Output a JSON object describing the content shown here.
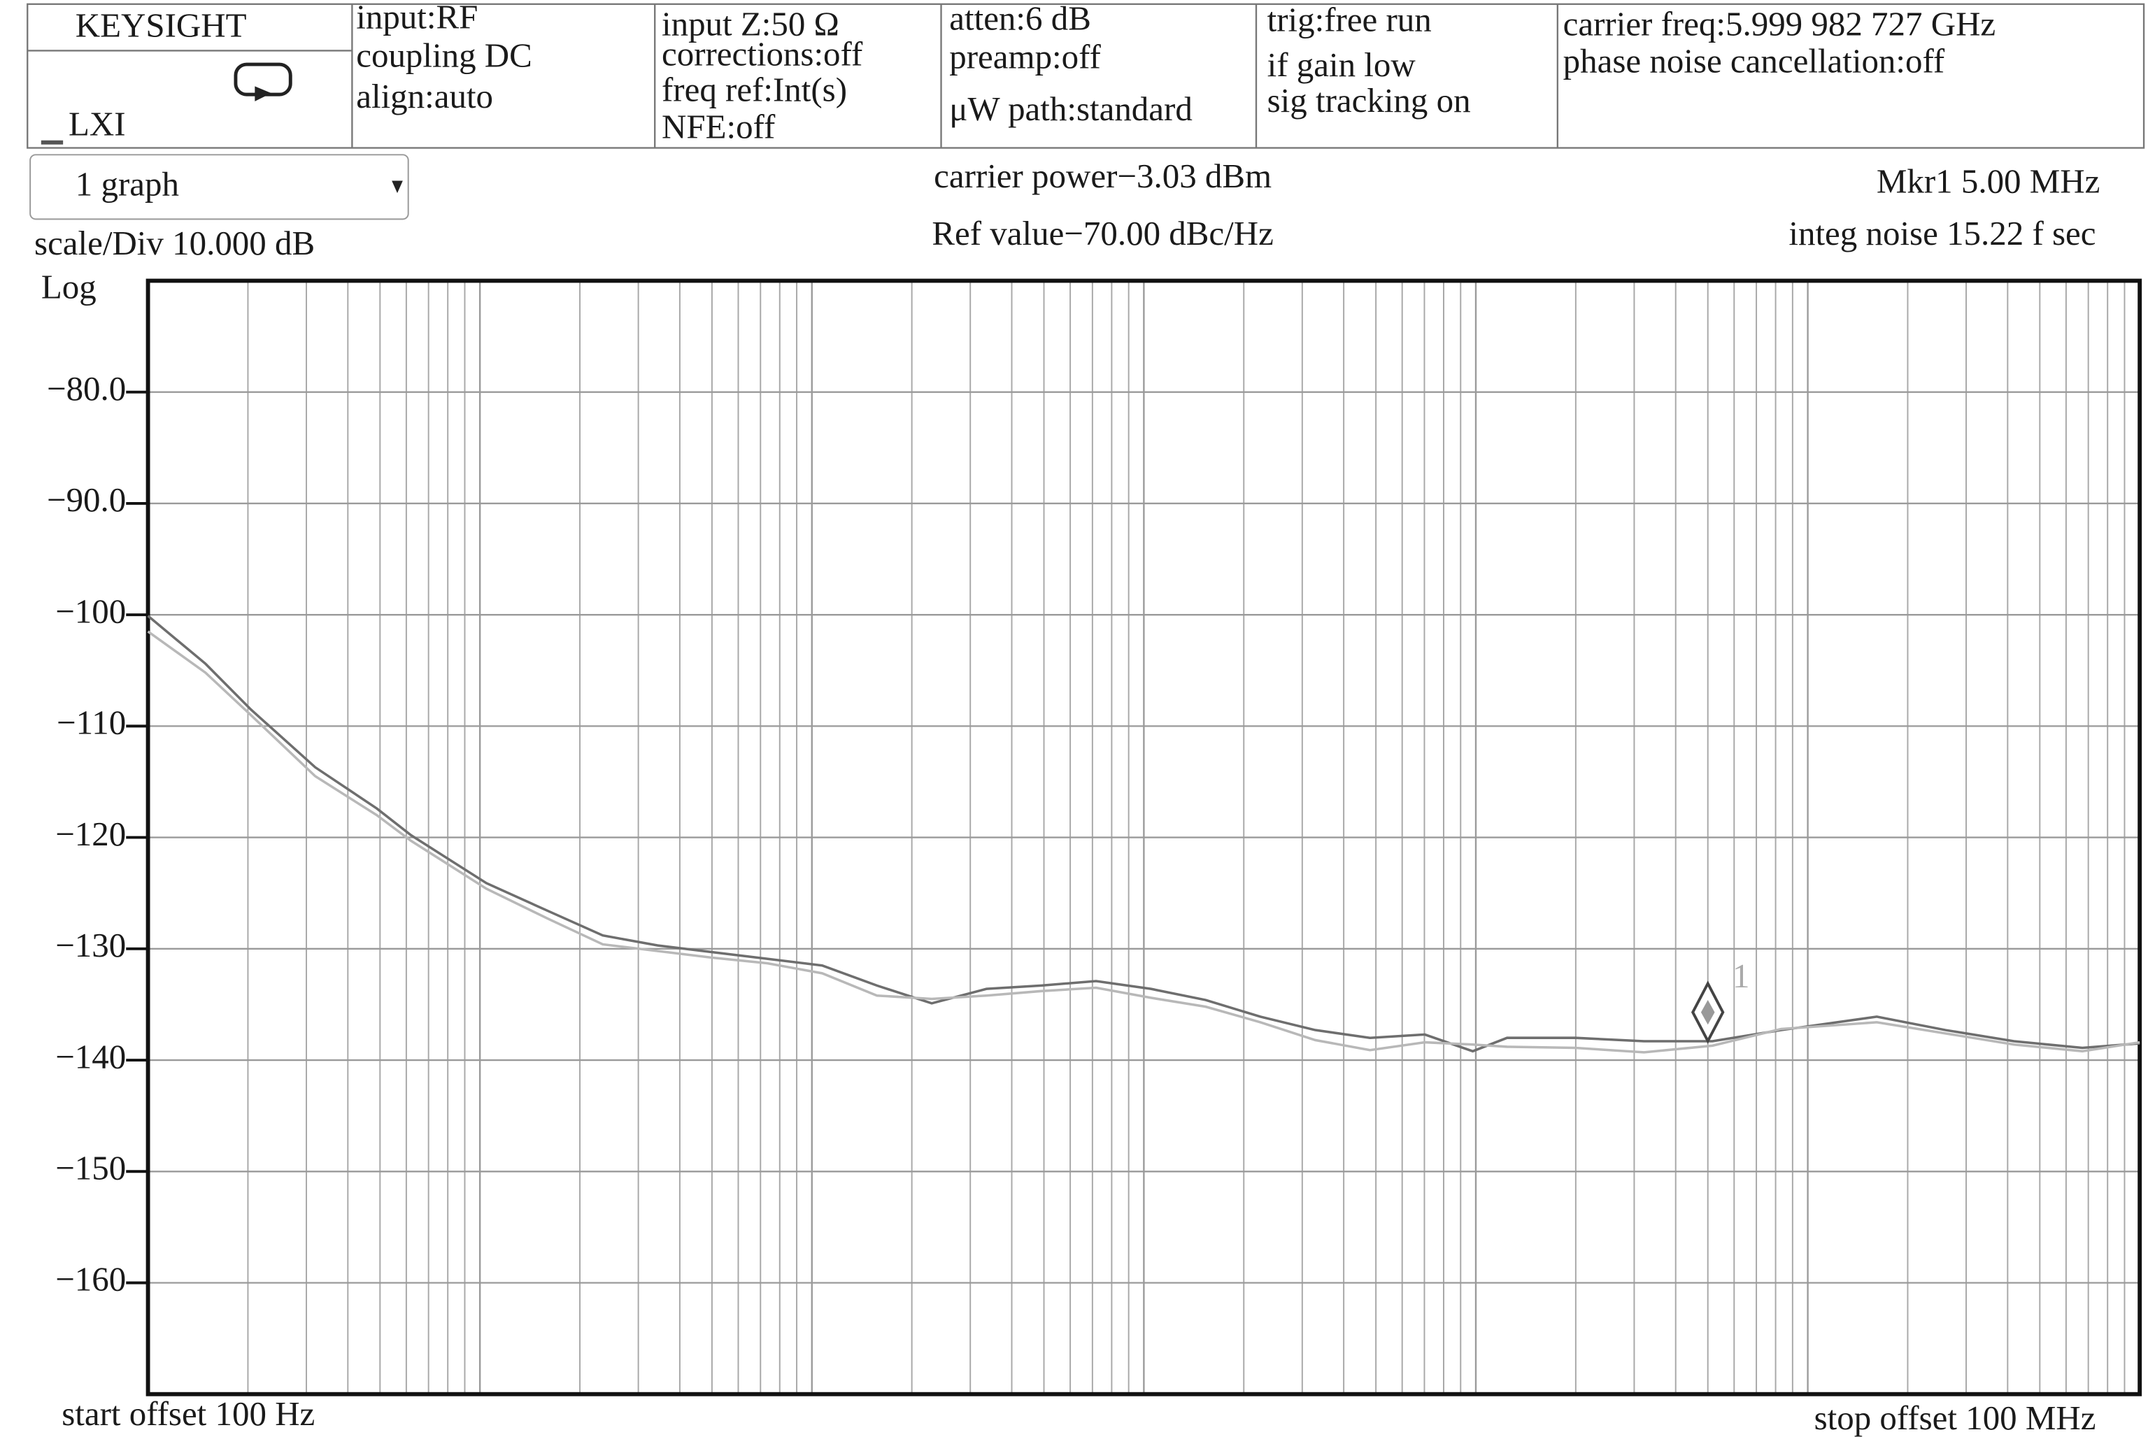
{
  "header": {
    "brand": "KEYSIGHT",
    "lxi": "LXI",
    "columns": [
      [
        "input:RF",
        "coupling DC",
        "align:auto"
      ],
      [
        "input Z:50 Ω",
        "corrections:off",
        "freq ref:Int(s)",
        "NFE:off"
      ],
      [
        "atten:6 dB",
        "preamp:off",
        "μW path:standard"
      ],
      [
        "trig:free run",
        "if gain low",
        "sig tracking on"
      ],
      [
        "carrier freq:5.999 982 727 GHz",
        "phase noise cancellation:off"
      ]
    ]
  },
  "status": {
    "view": "1 graph",
    "carrier_power": "carrier power−3.03 dBm",
    "ref_value": "Ref value−70.00 dBc/Hz",
    "marker_readout": "Mkr1 5.00 MHz",
    "integ_noise": "integ noise 15.22 f sec",
    "scale": "scale/Div 10.000 dB",
    "scale_type": "Log"
  },
  "chart_data": {
    "type": "line",
    "x_scale": "log",
    "grid": true,
    "xlim": [
      100,
      100000000
    ],
    "xticks": [
      100,
      1000,
      10000,
      100000,
      1000000,
      10000000,
      100000000
    ],
    "ylim": [
      -170,
      -70
    ],
    "yticks": [
      {
        "value": -80,
        "label": "−80.0"
      },
      {
        "value": -90,
        "label": "−90.0"
      },
      {
        "value": -100,
        "label": "−100"
      },
      {
        "value": -110,
        "label": "−110"
      },
      {
        "value": -120,
        "label": "−120"
      },
      {
        "value": -130,
        "label": "−130"
      },
      {
        "value": -140,
        "label": "−140"
      },
      {
        "value": -150,
        "label": "−150"
      },
      {
        "value": -160,
        "label": "−160"
      }
    ],
    "x_start_label": "start offset 100 Hz",
    "x_stop_label": "stop offset 100 MHz",
    "x": [
      100,
      149,
      204,
      319,
      489,
      620,
      1045,
      1603,
      2344,
      3428,
      5012,
      7330,
      10740,
      15700,
      22960,
      33570,
      49090,
      71780,
      105000,
      153500,
      224500,
      328300,
      480000,
      702000,
      979000,
      1242000,
      1995000,
      3212000,
      5164000,
      8318000,
      16140000,
      26000000,
      41780000,
      67160000,
      100000000
    ],
    "series": [
      {
        "color": "#6e6e6e",
        "values": [
          -100.1,
          -104.4,
          -108.5,
          -113.7,
          -117.4,
          -119.8,
          -124.1,
          -126.6,
          -128.8,
          -129.7,
          -130.3,
          -130.9,
          -131.5,
          -133.3,
          -134.9,
          -133.6,
          -133.3,
          -132.9,
          -133.6,
          -134.6,
          -136.1,
          -137.3,
          -138.0,
          -137.7,
          -139.2,
          -138.0,
          -138.0,
          -138.3,
          -138.3,
          -137.3,
          -136.1,
          -137.3,
          -138.3,
          -138.9,
          -138.5
        ]
      },
      {
        "color": "#b8b8b8",
        "values": [
          -101.5,
          -105.2,
          -109,
          -114.5,
          -118,
          -120.3,
          -124.6,
          -127.3,
          -129.6,
          -130.2,
          -130.8,
          -131.3,
          -132.2,
          -134.2,
          -134.5,
          -134.2,
          -133.8,
          -133.5,
          -134.4,
          -135.2,
          -136.6,
          -138.2,
          -139.1,
          -138.4,
          -138.6,
          -138.8,
          -138.9,
          -139.3,
          -138.7,
          -137.2,
          -136.6,
          -137.6,
          -138.6,
          -139.2,
          -138.4
        ]
      }
    ],
    "markers": [
      {
        "label": "1",
        "x": 5000000,
        "y": -135.7
      }
    ]
  }
}
